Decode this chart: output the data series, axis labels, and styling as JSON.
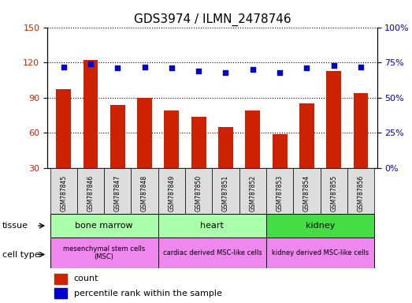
{
  "title": "GDS3974 / ILMN_2478746",
  "samples": [
    "GSM787845",
    "GSM787846",
    "GSM787847",
    "GSM787848",
    "GSM787849",
    "GSM787850",
    "GSM787851",
    "GSM787852",
    "GSM787853",
    "GSM787854",
    "GSM787855",
    "GSM787856"
  ],
  "counts": [
    97,
    122,
    84,
    90,
    79,
    74,
    65,
    79,
    59,
    85,
    113,
    94
  ],
  "percentile_ranks": [
    72,
    74,
    71,
    72,
    71,
    69,
    68,
    70,
    68,
    71,
    73,
    72
  ],
  "ylim_left": [
    30,
    150
  ],
  "ylim_right": [
    0,
    100
  ],
  "yticks_left": [
    30,
    60,
    90,
    120,
    150
  ],
  "yticks_right": [
    0,
    25,
    50,
    75,
    100
  ],
  "bar_color": "#cc2200",
  "dot_color": "#0000cc",
  "tissues": [
    {
      "label": "bone marrow",
      "start": 0,
      "end": 4,
      "color": "#aaffaa"
    },
    {
      "label": "heart",
      "start": 4,
      "end": 8,
      "color": "#aaffaa"
    },
    {
      "label": "kidney",
      "start": 8,
      "end": 12,
      "color": "#44dd44"
    }
  ],
  "cell_types": [
    {
      "label": "mesenchymal stem cells\n(MSC)",
      "start": 0,
      "end": 4,
      "color": "#ee88ee"
    },
    {
      "label": "cardiac derived MSC-like cells",
      "start": 4,
      "end": 8,
      "color": "#ee88ee"
    },
    {
      "label": "kidney derived MSC-like cells",
      "start": 8,
      "end": 12,
      "color": "#ee88ee"
    }
  ],
  "legend_count_label": "count",
  "legend_pct_label": "percentile rank within the sample",
  "tissue_label": "tissue",
  "cell_type_label": "cell type",
  "background_color": "#ffffff",
  "plot_bg_color": "#ffffff",
  "grid_color": "#000000",
  "tick_label_color_left": "#cc2200",
  "tick_label_color_right": "#0000cc",
  "title_fontsize": 11,
  "axis_fontsize": 8,
  "label_fontsize": 8,
  "xtick_bg_color": "#dddddd",
  "border_color": "#000000"
}
